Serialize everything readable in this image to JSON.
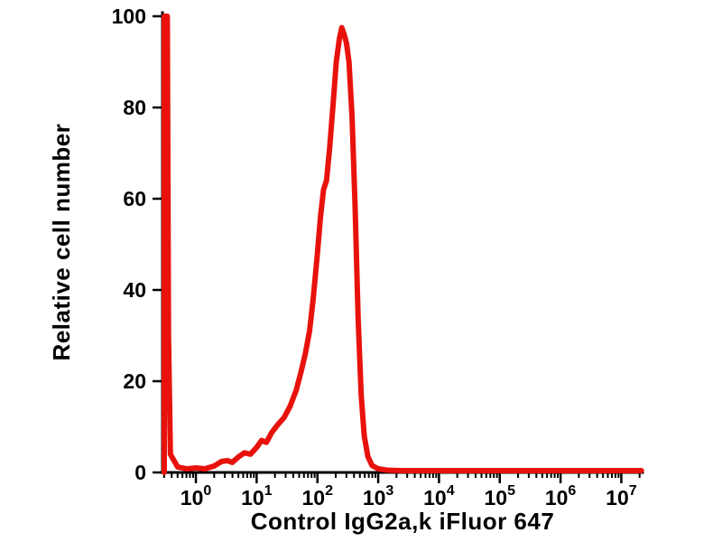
{
  "figure": {
    "background": "#ffffff",
    "xlabel": "Control IgG2a,k iFluor 647",
    "ylabel": "Relative cell number"
  },
  "chart_data": {
    "type": "line",
    "subtype": "flow-cytometry-histogram",
    "title": "",
    "xlabel": "Control IgG2a,k iFluor 647",
    "ylabel": "Relative cell number",
    "x_scale": "log10",
    "x_tick_base": "10",
    "x_tick_exponents": [
      0,
      1,
      2,
      3,
      4,
      5,
      6,
      7
    ],
    "y_ticks": [
      0,
      20,
      40,
      60,
      80,
      100
    ],
    "xlim_log10": [
      -0.55,
      7.35
    ],
    "ylim": [
      0,
      100
    ],
    "grid": false,
    "legend": null,
    "line_color": "#e8120c",
    "line_width": 6,
    "axis_color": "#000000",
    "axis_line_width": 3,
    "series": [
      {
        "name": "Control IgG2a,k iFluor 647",
        "peak_log10x": 2.4,
        "peak_y": 97.5,
        "points_log10x_y": [
          [
            -0.52,
            0
          ],
          [
            -0.52,
            100
          ],
          [
            -0.47,
            100
          ],
          [
            -0.45,
            30
          ],
          [
            -0.42,
            4
          ],
          [
            -0.3,
            1.2
          ],
          [
            -0.15,
            0.8
          ],
          [
            0.0,
            1.0
          ],
          [
            0.15,
            0.8
          ],
          [
            0.3,
            1.4
          ],
          [
            0.42,
            2.4
          ],
          [
            0.52,
            2.6
          ],
          [
            0.6,
            2.2
          ],
          [
            0.7,
            3.4
          ],
          [
            0.8,
            4.3
          ],
          [
            0.9,
            4.0
          ],
          [
            1.0,
            5.5
          ],
          [
            1.08,
            7.0
          ],
          [
            1.16,
            6.6
          ],
          [
            1.25,
            8.8
          ],
          [
            1.35,
            10.5
          ],
          [
            1.45,
            12.0
          ],
          [
            1.55,
            14.5
          ],
          [
            1.65,
            18.0
          ],
          [
            1.73,
            22.0
          ],
          [
            1.8,
            26.0
          ],
          [
            1.87,
            31.0
          ],
          [
            1.93,
            38.0
          ],
          [
            2.0,
            48.0
          ],
          [
            2.05,
            56.0
          ],
          [
            2.1,
            62.0
          ],
          [
            2.15,
            64.0
          ],
          [
            2.2,
            71.0
          ],
          [
            2.26,
            81.0
          ],
          [
            2.31,
            90.0
          ],
          [
            2.36,
            95.0
          ],
          [
            2.4,
            97.5
          ],
          [
            2.44,
            96.0
          ],
          [
            2.48,
            94.0
          ],
          [
            2.52,
            90.0
          ],
          [
            2.57,
            78.0
          ],
          [
            2.62,
            58.0
          ],
          [
            2.67,
            34.0
          ],
          [
            2.72,
            17.0
          ],
          [
            2.77,
            8.0
          ],
          [
            2.83,
            3.5
          ],
          [
            2.9,
            1.5
          ],
          [
            3.0,
            0.8
          ],
          [
            3.15,
            0.5
          ],
          [
            3.4,
            0.4
          ],
          [
            3.8,
            0.4
          ],
          [
            4.3,
            0.4
          ],
          [
            4.8,
            0.4
          ],
          [
            5.4,
            0.4
          ],
          [
            6.0,
            0.4
          ],
          [
            6.6,
            0.4
          ],
          [
            7.1,
            0.4
          ],
          [
            7.33,
            0.4
          ]
        ]
      }
    ]
  }
}
